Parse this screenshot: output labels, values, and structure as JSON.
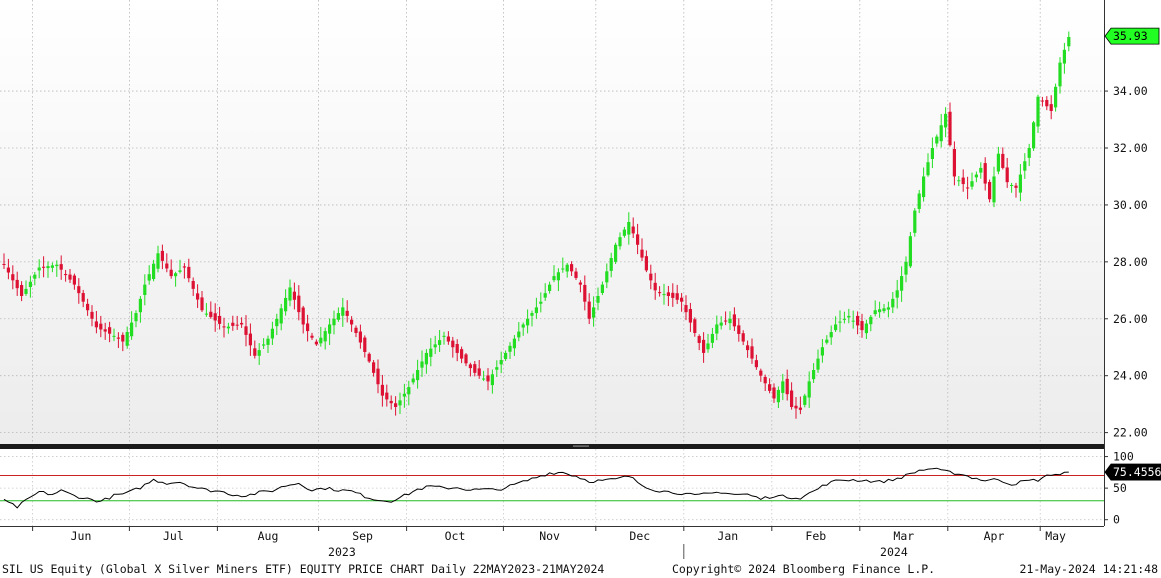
{
  "chart_data": {
    "type": "candlestick",
    "title": "SIL US Equity (Global X Silver Miners ETF) EQUITY PRICE CHART  Daily 22MAY2023-21MAY2024",
    "price_panel": {
      "ylim": [
        21.6,
        37.2
      ],
      "yticks": [
        "22.00",
        "24.00",
        "26.00",
        "28.00",
        "30.00",
        "32.00",
        "34.00"
      ],
      "ytick_values": [
        22,
        24,
        26,
        28,
        30,
        32,
        34
      ],
      "last_price_label": "35.93",
      "last_price": 35.93,
      "up_color": "#22dd22",
      "down_color": "#dd1133",
      "grid": true
    },
    "rsi_panel": {
      "ylim": [
        -10,
        112
      ],
      "yticks": [
        "0",
        "50",
        "100"
      ],
      "ytick_values": [
        0,
        50,
        100
      ],
      "overbought": 70,
      "oversold": 30,
      "last_value_label": "75.4556",
      "last_value": 75.4556,
      "line_color": "#000000",
      "overbought_color": "#cc2222",
      "oversold_color": "#22bb22"
    },
    "x_axis": {
      "months": [
        "Jun",
        "Jul",
        "Aug",
        "Sep",
        "Oct",
        "Nov",
        "Dec",
        "Jan",
        "Feb",
        "Mar",
        "Apr",
        "May"
      ],
      "years": [
        "2023",
        "2024"
      ]
    },
    "close_anchors": [
      [
        0,
        27.9
      ],
      [
        4,
        26.8
      ],
      [
        8,
        27.8
      ],
      [
        12,
        27.9
      ],
      [
        16,
        27.2
      ],
      [
        21,
        25.7
      ],
      [
        25,
        25.4
      ],
      [
        27,
        25.2
      ],
      [
        30,
        26.2
      ],
      [
        32,
        27.2
      ],
      [
        35,
        28.3
      ],
      [
        38,
        27.5
      ],
      [
        41,
        27.8
      ],
      [
        45,
        26.3
      ],
      [
        50,
        25.7
      ],
      [
        54,
        25.8
      ],
      [
        57,
        24.7
      ],
      [
        60,
        25.3
      ],
      [
        62,
        26.0
      ],
      [
        65,
        27.1
      ],
      [
        68,
        25.8
      ],
      [
        71,
        25.1
      ],
      [
        74,
        25.8
      ],
      [
        77,
        26.4
      ],
      [
        80,
        25.5
      ],
      [
        83,
        24.5
      ],
      [
        86,
        23.3
      ],
      [
        89,
        22.9
      ],
      [
        92,
        23.6
      ],
      [
        96,
        24.8
      ],
      [
        100,
        25.4
      ],
      [
        104,
        24.6
      ],
      [
        107,
        24.1
      ],
      [
        110,
        23.8
      ],
      [
        114,
        24.8
      ],
      [
        118,
        25.8
      ],
      [
        122,
        26.6
      ],
      [
        125,
        27.5
      ],
      [
        128,
        27.9
      ],
      [
        131,
        27.2
      ],
      [
        133,
        26.0
      ],
      [
        136,
        27.2
      ],
      [
        139,
        28.6
      ],
      [
        142,
        29.4
      ],
      [
        144,
        28.6
      ],
      [
        146,
        27.7
      ],
      [
        148,
        27.0
      ],
      [
        151,
        26.8
      ],
      [
        154,
        26.6
      ],
      [
        157,
        25.5
      ],
      [
        159,
        24.8
      ],
      [
        162,
        25.8
      ],
      [
        165,
        26.0
      ],
      [
        168,
        25.2
      ],
      [
        170,
        24.6
      ],
      [
        172,
        24.0
      ],
      [
        175,
        23.2
      ],
      [
        177,
        23.8
      ],
      [
        179,
        22.9
      ],
      [
        181,
        22.8
      ],
      [
        183,
        23.8
      ],
      [
        186,
        25.0
      ],
      [
        189,
        25.8
      ],
      [
        192,
        26.1
      ],
      [
        195,
        25.6
      ],
      [
        198,
        26.3
      ],
      [
        201,
        26.4
      ],
      [
        203,
        27.0
      ],
      [
        205,
        28.0
      ],
      [
        207,
        29.8
      ],
      [
        209,
        31.0
      ],
      [
        211,
        32.0
      ],
      [
        214,
        33.2
      ],
      [
        216,
        31.0
      ],
      [
        219,
        30.6
      ],
      [
        222,
        31.3
      ],
      [
        224,
        30.2
      ],
      [
        226,
        31.8
      ],
      [
        228,
        30.8
      ],
      [
        230,
        30.6
      ],
      [
        233,
        32.0
      ],
      [
        235,
        33.8
      ],
      [
        238,
        33.3
      ],
      [
        240,
        35.0
      ],
      [
        242,
        35.9
      ]
    ],
    "rsi_anchors": [
      [
        0,
        30
      ],
      [
        3,
        20
      ],
      [
        5,
        30
      ],
      [
        8,
        44
      ],
      [
        11,
        40
      ],
      [
        13,
        46
      ],
      [
        16,
        38
      ],
      [
        19,
        33
      ],
      [
        22,
        29
      ],
      [
        25,
        38
      ],
      [
        28,
        42
      ],
      [
        31,
        51
      ],
      [
        34,
        63
      ],
      [
        37,
        58
      ],
      [
        40,
        60
      ],
      [
        43,
        52
      ],
      [
        46,
        47
      ],
      [
        49,
        45
      ],
      [
        52,
        40
      ],
      [
        55,
        38
      ],
      [
        58,
        43
      ],
      [
        61,
        46
      ],
      [
        64,
        54
      ],
      [
        67,
        58
      ],
      [
        70,
        47
      ],
      [
        73,
        50
      ],
      [
        76,
        47
      ],
      [
        79,
        45
      ],
      [
        82,
        37
      ],
      [
        85,
        31
      ],
      [
        88,
        30
      ],
      [
        91,
        38
      ],
      [
        94,
        48
      ],
      [
        97,
        53
      ],
      [
        100,
        50
      ],
      [
        103,
        51
      ],
      [
        106,
        47
      ],
      [
        109,
        48
      ],
      [
        112,
        47
      ],
      [
        115,
        53
      ],
      [
        118,
        60
      ],
      [
        121,
        67
      ],
      [
        124,
        74
      ],
      [
        127,
        75
      ],
      [
        130,
        69
      ],
      [
        133,
        61
      ],
      [
        136,
        62
      ],
      [
        139,
        64
      ],
      [
        142,
        69
      ],
      [
        145,
        55
      ],
      [
        148,
        47
      ],
      [
        151,
        44
      ],
      [
        154,
        42
      ],
      [
        157,
        38
      ],
      [
        160,
        41
      ],
      [
        163,
        44
      ],
      [
        166,
        40
      ],
      [
        169,
        40
      ],
      [
        172,
        33
      ],
      [
        175,
        38
      ],
      [
        178,
        36
      ],
      [
        181,
        35
      ],
      [
        184,
        45
      ],
      [
        187,
        57
      ],
      [
        190,
        63
      ],
      [
        193,
        63
      ],
      [
        196,
        62
      ],
      [
        199,
        60
      ],
      [
        202,
        63
      ],
      [
        205,
        70
      ],
      [
        208,
        78
      ],
      [
        211,
        81
      ],
      [
        214,
        76
      ],
      [
        217,
        73
      ],
      [
        220,
        67
      ],
      [
        223,
        62
      ],
      [
        226,
        64
      ],
      [
        229,
        56
      ],
      [
        232,
        61
      ],
      [
        235,
        63
      ],
      [
        238,
        72
      ],
      [
        240,
        72
      ],
      [
        242,
        75.5
      ]
    ]
  }
}
